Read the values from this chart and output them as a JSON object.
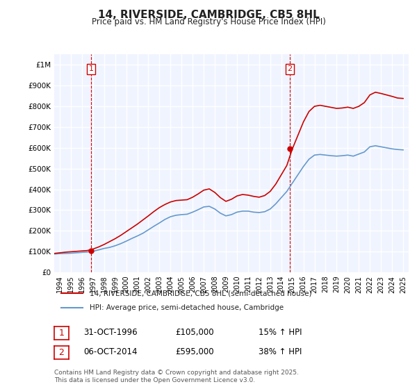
{
  "title": "14, RIVERSIDE, CAMBRIDGE, CB5 8HL",
  "subtitle": "Price paid vs. HM Land Registry's House Price Index (HPI)",
  "legend_line1": "14, RIVERSIDE, CAMBRIDGE, CB5 8HL (semi-detached house)",
  "legend_line2": "HPI: Average price, semi-detached house, Cambridge",
  "annotation1_label": "1",
  "annotation1_date": "31-OCT-1996",
  "annotation1_price": 105000,
  "annotation1_note": "15% ↑ HPI",
  "annotation2_label": "2",
  "annotation2_date": "06-OCT-2014",
  "annotation2_price": 595000,
  "annotation2_note": "38% ↑ HPI",
  "vline1_x": 1996.83,
  "vline2_x": 2014.76,
  "price_color": "#cc0000",
  "hpi_color": "#6699cc",
  "vline_color": "#cc0000",
  "background_color": "#f0f4ff",
  "grid_color": "#ffffff",
  "ylabel_top": "£1M",
  "ylim": [
    0,
    1050000
  ],
  "xlim": [
    1993.5,
    2025.5
  ],
  "footer": "Contains HM Land Registry data © Crown copyright and database right 2025.\nThis data is licensed under the Open Government Licence v3.0.",
  "hpi_years": [
    1993.5,
    1994,
    1994.5,
    1995,
    1995.5,
    1996,
    1996.5,
    1997,
    1997.5,
    1998,
    1998.5,
    1999,
    1999.5,
    2000,
    2000.5,
    2001,
    2001.5,
    2002,
    2002.5,
    2003,
    2003.5,
    2004,
    2004.5,
    2005,
    2005.5,
    2006,
    2006.5,
    2007,
    2007.5,
    2008,
    2008.5,
    2009,
    2009.5,
    2010,
    2010.5,
    2011,
    2011.5,
    2012,
    2012.5,
    2013,
    2013.5,
    2014,
    2014.5,
    2015,
    2015.5,
    2016,
    2016.5,
    2017,
    2017.5,
    2018,
    2018.5,
    2019,
    2019.5,
    2020,
    2020.5,
    2021,
    2021.5,
    2022,
    2022.5,
    2023,
    2023.5,
    2024,
    2024.5,
    2025
  ],
  "hpi_values": [
    88000,
    90000,
    91000,
    92000,
    94000,
    96000,
    98000,
    101000,
    108000,
    115000,
    120000,
    128000,
    138000,
    150000,
    163000,
    175000,
    188000,
    205000,
    222000,
    238000,
    255000,
    268000,
    275000,
    278000,
    280000,
    290000,
    302000,
    315000,
    318000,
    305000,
    285000,
    272000,
    278000,
    290000,
    295000,
    295000,
    290000,
    288000,
    292000,
    305000,
    330000,
    360000,
    390000,
    430000,
    470000,
    510000,
    545000,
    565000,
    568000,
    565000,
    562000,
    560000,
    562000,
    565000,
    560000,
    570000,
    580000,
    605000,
    610000,
    605000,
    600000,
    595000,
    592000,
    590000
  ],
  "price_years": [
    1993.5,
    1994,
    1994.5,
    1995,
    1995.5,
    1996,
    1996.5,
    1997,
    1997.5,
    1998,
    1998.5,
    1999,
    1999.5,
    2000,
    2000.5,
    2001,
    2001.5,
    2002,
    2002.5,
    2003,
    2003.5,
    2004,
    2004.5,
    2005,
    2005.5,
    2006,
    2006.5,
    2007,
    2007.5,
    2008,
    2008.5,
    2009,
    2009.5,
    2010,
    2010.5,
    2011,
    2011.5,
    2012,
    2012.5,
    2013,
    2013.5,
    2014,
    2014.5,
    2015,
    2015.5,
    2016,
    2016.5,
    2017,
    2017.5,
    2018,
    2018.5,
    2019,
    2019.5,
    2020,
    2020.5,
    2021,
    2021.5,
    2022,
    2022.5,
    2023,
    2023.5,
    2024,
    2024.5,
    2025
  ],
  "price_values": [
    91000,
    94000,
    97000,
    99000,
    101000,
    103000,
    105000,
    112000,
    122000,
    134000,
    148000,
    162000,
    178000,
    196000,
    214000,
    232000,
    252000,
    272000,
    293000,
    312000,
    327000,
    339000,
    346000,
    348000,
    350000,
    362000,
    378000,
    396000,
    402000,
    385000,
    360000,
    342000,
    352000,
    368000,
    375000,
    372000,
    366000,
    362000,
    370000,
    390000,
    425000,
    470000,
    515000,
    595000,
    660000,
    725000,
    775000,
    800000,
    805000,
    800000,
    795000,
    790000,
    792000,
    796000,
    790000,
    800000,
    818000,
    855000,
    868000,
    862000,
    855000,
    848000,
    840000,
    838000
  ]
}
